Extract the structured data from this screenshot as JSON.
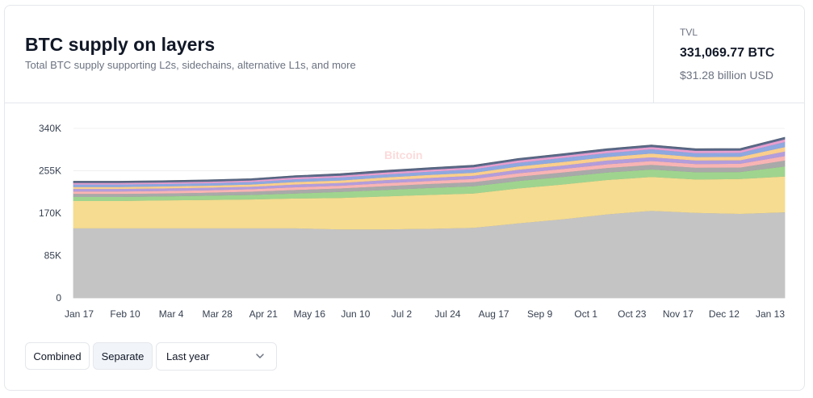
{
  "header": {
    "title": "BTC supply on layers",
    "subtitle": "Total BTC supply supporting L2s, sidechains, alternative L1s, and more"
  },
  "tvl": {
    "label": "TVL",
    "btc_value": "331,069.77 BTC",
    "usd_value": "$31.28 billion USD"
  },
  "watermark": "Bitcoin",
  "controls": {
    "combined_label": "Combined",
    "separate_label": "Separate",
    "range_selected": "Last year",
    "active": "separate"
  },
  "chart_data": {
    "type": "area",
    "stacked": true,
    "y_ticks": [
      "0",
      "85K",
      "170K",
      "255K",
      "340K"
    ],
    "ylim": [
      0,
      340000
    ],
    "x_ticks": [
      "Jan 17",
      "Feb 10",
      "Mar 4",
      "Mar 28",
      "Apr 21",
      "May 16",
      "Jun 10",
      "Jul 2",
      "Jul 24",
      "Aug 17",
      "Sep 9",
      "Oct 1",
      "Oct 23",
      "Nov 17",
      "Dec 12",
      "Jan 13"
    ],
    "x_points": [
      "Jan 17",
      "Feb 10",
      "Mar 4",
      "Mar 28",
      "Apr 21",
      "May 16",
      "Jun 10",
      "Jul 2",
      "Jul 24",
      "Aug 17",
      "Sep 9",
      "Oct 1",
      "Oct 23",
      "Nov 17",
      "Dec 12",
      "Jan 6",
      "Jan 13"
    ],
    "grid": "horizontal",
    "series": [
      {
        "color": "#c4c4c4",
        "values": [
          140000,
          140000,
          140000,
          140000,
          140000,
          140000,
          138000,
          138000,
          139000,
          141000,
          150000,
          158000,
          168000,
          175000,
          171000,
          169000,
          172000
        ]
      },
      {
        "color": "#f5dc90",
        "values": [
          55000,
          55000,
          56000,
          57000,
          58000,
          60000,
          63000,
          66000,
          68000,
          69000,
          70000,
          70000,
          69000,
          68000,
          67000,
          70000,
          72000
        ]
      },
      {
        "color": "#9fd48f",
        "values": [
          8000,
          8000,
          8000,
          8500,
          9000,
          10000,
          12000,
          13000,
          14000,
          14500,
          15000,
          15000,
          15000,
          15000,
          14500,
          14000,
          20000
        ]
      },
      {
        "color": "#a9a9a9",
        "values": [
          6000,
          6000,
          6000,
          6000,
          6500,
          7000,
          7000,
          7500,
          8000,
          8000,
          8500,
          9000,
          9000,
          9500,
          9000,
          9000,
          12000
        ]
      },
      {
        "color": "#f8b4b4",
        "values": [
          5000,
          5000,
          5000,
          5000,
          5000,
          5500,
          5500,
          6000,
          6000,
          6500,
          7000,
          7000,
          7500,
          7500,
          7500,
          7500,
          9000
        ]
      },
      {
        "color": "#b39ddb",
        "values": [
          5000,
          5000,
          5000,
          5000,
          5000,
          5500,
          5500,
          6000,
          6000,
          6500,
          7000,
          7000,
          7500,
          7500,
          7000,
          7000,
          9000
        ]
      },
      {
        "color": "#fbcf8c",
        "values": [
          4000,
          4000,
          4000,
          4000,
          4500,
          5000,
          5000,
          5500,
          6000,
          6000,
          6500,
          7000,
          7000,
          7500,
          7000,
          7000,
          9000
        ]
      },
      {
        "color": "#8ea8e0",
        "values": [
          5000,
          5000,
          5000,
          5000,
          5000,
          5500,
          6000,
          6000,
          6500,
          7000,
          7500,
          8000,
          8000,
          8500,
          8000,
          8000,
          10000
        ]
      },
      {
        "color": "#e89fcf",
        "values": [
          3000,
          3000,
          3000,
          3000,
          3000,
          3500,
          3500,
          4000,
          4000,
          4000,
          4500,
          4500,
          4500,
          4500,
          4500,
          4500,
          5500
        ]
      },
      {
        "color": "#5a6b8c",
        "values": [
          3000,
          3000,
          3000,
          3000,
          3000,
          3000,
          3500,
          3500,
          3500,
          3500,
          3500,
          3500,
          3500,
          3500,
          3500,
          3500,
          3500
        ]
      }
    ]
  }
}
